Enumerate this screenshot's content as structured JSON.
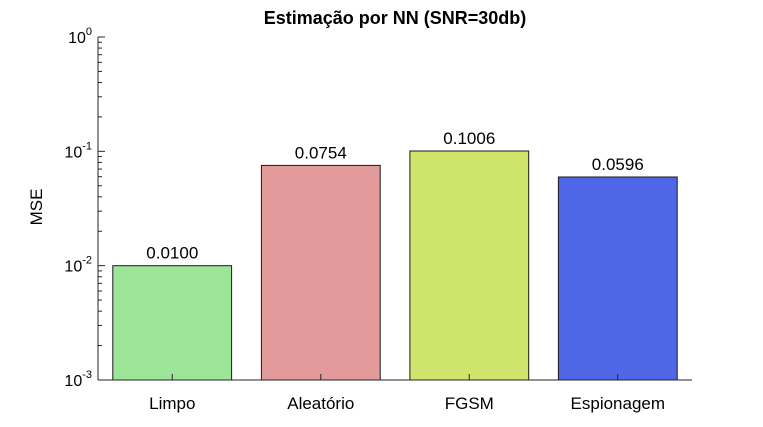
{
  "chart_data": {
    "type": "bar",
    "title": "Estimação por NN (SNR=30db)",
    "xlabel": "",
    "ylabel": "MSE",
    "yscale": "log",
    "ylim": [
      0.001,
      1
    ],
    "ytick_labels": [
      {
        "base": "10",
        "exp": "-3"
      },
      {
        "base": "10",
        "exp": "-2"
      },
      {
        "base": "10",
        "exp": "-1"
      },
      {
        "base": "10",
        "exp": "0"
      }
    ],
    "categories": [
      "Limpo",
      "Aleatório",
      "FGSM",
      "Espionagem"
    ],
    "values": [
      0.01,
      0.0754,
      0.1006,
      0.0596
    ],
    "data_labels": [
      "0.0100",
      "0.0754",
      "0.1006",
      "0.0596"
    ],
    "bar_colors": [
      "#9de598",
      "#e39a9a",
      "#cfe46a",
      "#4f67e6"
    ],
    "grid": false
  }
}
